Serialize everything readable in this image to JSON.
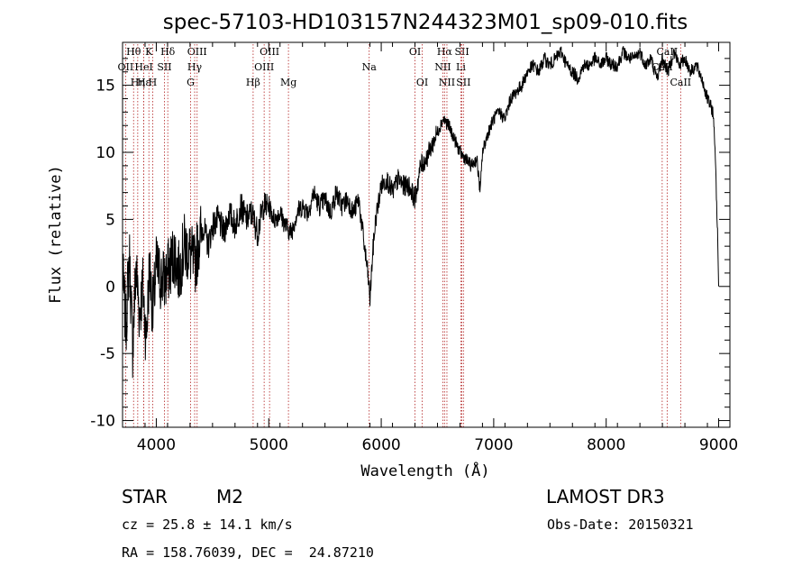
{
  "chart_data": {
    "type": "line",
    "title": "spec-57103-HD103157N244323M01_sp09-010.fits",
    "xlabel": "Wavelength (Å)",
    "ylabel": "Flux (relative)",
    "xlim": [
      3700,
      9100
    ],
    "ylim": [
      -10.5,
      18.2
    ],
    "xticks": [
      4000,
      5000,
      6000,
      7000,
      8000,
      9000
    ],
    "yticks": [
      -10,
      -5,
      0,
      5,
      10,
      15
    ],
    "series": [
      {
        "name": "spectrum",
        "x": [
          3700,
          3730,
          3760,
          3790,
          3820,
          3850,
          3880,
          3910,
          3940,
          3970,
          4000,
          4040,
          4080,
          4120,
          4160,
          4200,
          4250,
          4300,
          4340,
          4380,
          4420,
          4460,
          4500,
          4550,
          4600,
          4650,
          4700,
          4750,
          4800,
          4850,
          4900,
          4950,
          5000,
          5050,
          5100,
          5150,
          5200,
          5250,
          5300,
          5350,
          5400,
          5450,
          5500,
          5550,
          5600,
          5650,
          5700,
          5750,
          5800,
          5850,
          5880,
          5900,
          5920,
          5950,
          6000,
          6050,
          6100,
          6150,
          6200,
          6250,
          6300,
          6350,
          6400,
          6450,
          6500,
          6550,
          6600,
          6650,
          6700,
          6750,
          6800,
          6850,
          6880,
          6900,
          6950,
          7000,
          7050,
          7100,
          7150,
          7200,
          7250,
          7300,
          7350,
          7400,
          7450,
          7500,
          7550,
          7600,
          7650,
          7700,
          7750,
          7800,
          7850,
          7900,
          7950,
          8000,
          8050,
          8100,
          8150,
          8200,
          8250,
          8300,
          8350,
          8400,
          8450,
          8500,
          8550,
          8600,
          8650,
          8700,
          8750,
          8800,
          8850,
          8900,
          8950,
          8970,
          8990,
          9000
        ],
        "y": [
          1.0,
          -3.0,
          2.5,
          -4.5,
          1.5,
          -2.0,
          0.0,
          -4.0,
          1.5,
          -2.0,
          1.5,
          0.5,
          0.5,
          1.5,
          2.5,
          1.0,
          3.0,
          2.5,
          1.5,
          3.5,
          4.5,
          3.0,
          4.5,
          5.0,
          4.0,
          5.5,
          4.5,
          6.0,
          5.0,
          5.5,
          4.0,
          6.0,
          6.0,
          5.0,
          5.5,
          4.5,
          4.0,
          5.5,
          6.0,
          5.5,
          7.0,
          6.0,
          6.5,
          5.5,
          7.0,
          6.0,
          6.5,
          5.5,
          6.5,
          3.0,
          1.0,
          -1.0,
          2.0,
          5.0,
          7.5,
          8.0,
          7.0,
          8.0,
          7.5,
          7.5,
          6.5,
          9.0,
          9.5,
          10.5,
          11.5,
          12.5,
          12.0,
          11.0,
          10.0,
          9.5,
          9.0,
          9.5,
          7.0,
          10.0,
          11.5,
          12.5,
          13.0,
          12.5,
          14.0,
          14.5,
          15.0,
          16.0,
          16.5,
          16.0,
          17.0,
          16.5,
          17.0,
          17.5,
          16.5,
          16.0,
          15.5,
          16.5,
          16.5,
          17.0,
          16.5,
          17.0,
          16.5,
          16.5,
          17.5,
          17.0,
          17.0,
          17.5,
          16.5,
          17.0,
          15.5,
          17.0,
          16.0,
          17.5,
          16.5,
          17.0,
          16.0,
          16.5,
          15.5,
          14.0,
          13.0,
          10.0,
          4.0,
          0.0
        ]
      }
    ],
    "line_markers": [
      {
        "name": "Hθ",
        "wavelength": 3798,
        "row": 1
      },
      {
        "name": "OII",
        "wavelength": 3727,
        "row": 2
      },
      {
        "name": "Hη",
        "wavelength": 3835,
        "row": 3
      },
      {
        "name": "HeI",
        "wavelength": 3889,
        "row": 2
      },
      {
        "name": "Hε",
        "wavelength": 3889,
        "row": 3
      },
      {
        "name": "K",
        "wavelength": 3934,
        "row": 1
      },
      {
        "name": "H",
        "wavelength": 3968,
        "row": 3
      },
      {
        "name": "SII",
        "wavelength": 4072,
        "row": 2
      },
      {
        "name": "Hδ",
        "wavelength": 4102,
        "row": 1
      },
      {
        "name": "OIII",
        "wavelength": 4363,
        "row": 1
      },
      {
        "name": "Hγ",
        "wavelength": 4341,
        "row": 2
      },
      {
        "name": "G",
        "wavelength": 4305,
        "row": 3
      },
      {
        "name": "Hβ",
        "wavelength": 4861,
        "row": 3
      },
      {
        "name": "OIII",
        "wavelength": 5007,
        "row": 1
      },
      {
        "name": "OIII",
        "wavelength": 4959,
        "row": 2
      },
      {
        "name": "Mg",
        "wavelength": 5175,
        "row": 3
      },
      {
        "name": "Na",
        "wavelength": 5893,
        "row": 2
      },
      {
        "name": "OI",
        "wavelength": 6300,
        "row": 1
      },
      {
        "name": "OI",
        "wavelength": 6364,
        "row": 3
      },
      {
        "name": "Hα",
        "wavelength": 6563,
        "row": 1
      },
      {
        "name": "NII",
        "wavelength": 6548,
        "row": 2
      },
      {
        "name": "NII",
        "wavelength": 6584,
        "row": 3
      },
      {
        "name": "SII",
        "wavelength": 6717,
        "row": 1
      },
      {
        "name": "Li",
        "wavelength": 6708,
        "row": 2
      },
      {
        "name": "SII",
        "wavelength": 6731,
        "row": 3
      },
      {
        "name": "CaII",
        "wavelength": 8542,
        "row": 1
      },
      {
        "name": "CaII",
        "wavelength": 8498,
        "row": 2
      },
      {
        "name": "CaII",
        "wavelength": 8662,
        "row": 3
      }
    ]
  },
  "info": {
    "object_class": "STAR",
    "subclass": "M2",
    "survey": "LAMOST DR3",
    "redshift_line": "cz = 25.8 ± 14.1 km/s",
    "obs_date": "Obs-Date: 20150321",
    "coords": "RA = 158.76039, DEC =  24.87210"
  }
}
